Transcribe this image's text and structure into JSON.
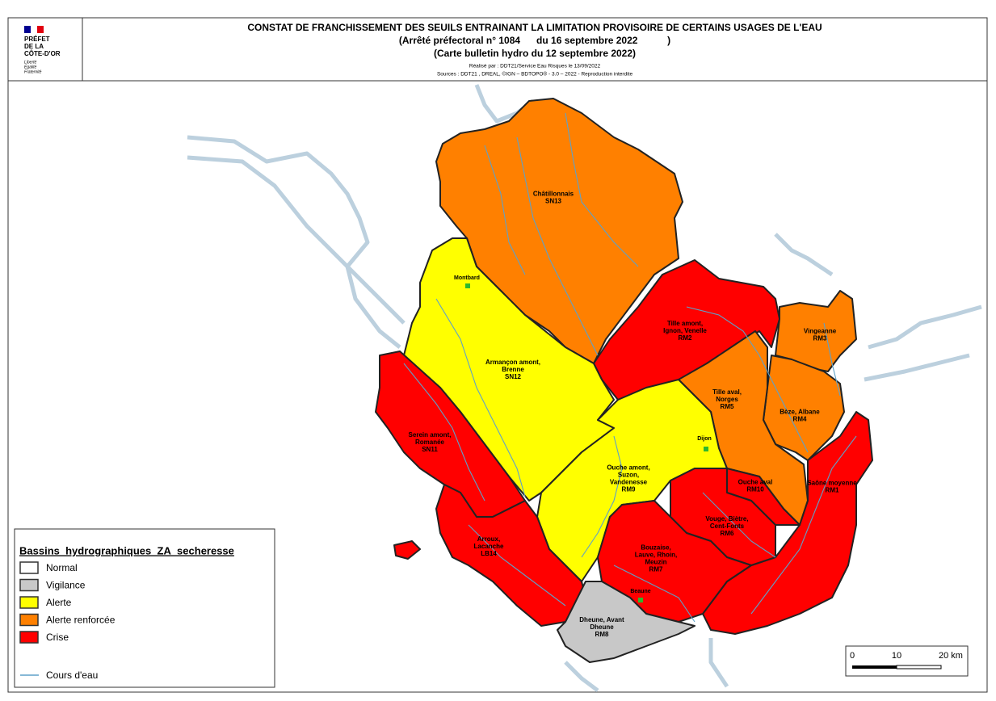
{
  "header": {
    "logo": [
      "PRÉFET",
      "DE LA",
      "CÔTE-D'OR"
    ],
    "motto": [
      "Liberté",
      "Égalité",
      "Fraternité"
    ],
    "title": "CONSTAT DE FRANCHISSEMENT DES SEUILS ENTRAINANT LA LIMITATION PROVISOIRE DE CERTAINS USAGES DE L'EAU",
    "decree": "(Arrêté préfectoral n° 1084      du 16 septembre 2022           )",
    "bulletin": "(Carte bulletin hydro du 12 septembre 2022)",
    "author": "Réalisé par : DDT21/Service Eau Risques le 13/09/2022",
    "sources": "Sources : DDT21 , DREAL, ©IGN – BDTOPO® - 3.0 – 2022 - Reproduction interdite"
  },
  "basins": [
    {
      "name": [
        "Châtillonnais"
      ],
      "code": "SN13",
      "color": "#ff8000"
    },
    {
      "name": [
        "Tille amont,",
        "Ignon, Venelle"
      ],
      "code": "RM2",
      "color": "#ff0000"
    },
    {
      "name": [
        "Vingeanne"
      ],
      "code": "RM3",
      "color": "#ff8000"
    },
    {
      "name": [
        "Tille aval,",
        "Norges"
      ],
      "code": "RM5",
      "color": "#ff8000"
    },
    {
      "name": [
        "Bèze, Albane"
      ],
      "code": "RM4",
      "color": "#ff8000"
    },
    {
      "name": [
        "Armançon amont,",
        "Brenne"
      ],
      "code": "SN12",
      "color": "#ffff00"
    },
    {
      "name": [
        "Serein amont,",
        "Romanée"
      ],
      "code": "SN11",
      "color": "#ff0000"
    },
    {
      "name": [
        "Ouche amont,",
        "Suzon,",
        "Vandenesse"
      ],
      "code": "RM9",
      "color": "#ffff00"
    },
    {
      "name": [
        "Ouche aval"
      ],
      "code": "RM10",
      "color": "#ff0000"
    },
    {
      "name": [
        "Saône moyenne"
      ],
      "code": "RM1",
      "color": "#ff0000"
    },
    {
      "name": [
        "Vouge, Biètre,",
        "Cent-Fonts"
      ],
      "code": "RM6",
      "color": "#ff0000"
    },
    {
      "name": [
        "Bouzaise,",
        "Lauve, Rhoin,",
        "Meuzin"
      ],
      "code": "RM7",
      "color": "#ff0000"
    },
    {
      "name": [
        "Arroux,",
        "Lacanche"
      ],
      "code": "LB14",
      "color": "#ff0000"
    },
    {
      "name": [
        "Dheune, Avant",
        "Dheune"
      ],
      "code": "RM8",
      "color": "#c8c8c8"
    }
  ],
  "cities": [
    "Montbard",
    "Dijon",
    "Beaune"
  ],
  "legend": {
    "title": "Bassins_hydrographiques_ZA_secheresse",
    "items": [
      {
        "label": "Normal",
        "color": "#ffffff"
      },
      {
        "label": "Vigilance",
        "color": "#c8c8c8"
      },
      {
        "label": "Alerte",
        "color": "#ffff00"
      },
      {
        "label": "Alerte renforcée",
        "color": "#ff8000"
      },
      {
        "label": "Crise",
        "color": "#ff0000"
      }
    ],
    "river": {
      "label": "Cours d'eau",
      "color": "#5ea1c8"
    }
  },
  "scale": [
    "0",
    "10",
    "20 km"
  ]
}
